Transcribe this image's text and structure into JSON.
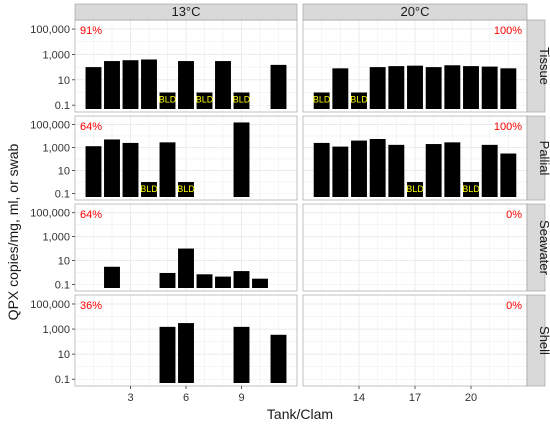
{
  "chart_data": {
    "type": "bar",
    "xlabel": "Tank/Clam",
    "ylabel": "QPX copies/mg, ml, or swab",
    "y_scale": "log10",
    "ylim": [
      0.05,
      300000
    ],
    "y_ticks": [
      0.1,
      10,
      1000,
      100000
    ],
    "y_tick_labels": [
      "0.1",
      "10",
      "1,000",
      "100,000"
    ],
    "x_ticks": {
      "13°C": [
        "3",
        "6",
        "9"
      ],
      "20°C": [
        "14",
        "17",
        "20"
      ]
    },
    "columns": [
      "13°C",
      "20°C"
    ],
    "rows": [
      "Tissue",
      "Pallial",
      "Seawater",
      "Shell"
    ],
    "grid": true,
    "colors": {
      "bar": "#000000",
      "percent": "#ff0000",
      "bld": "#ffff00",
      "strip": "#d9d9d9",
      "grid": "#ebebeb"
    },
    "bld_label": "BLD",
    "bld_display_value": 1,
    "panels": [
      {
        "row": "Tissue",
        "column": "13°C",
        "percent": "91%",
        "percent_position": "top-left",
        "x": [
          1,
          2,
          3,
          4,
          5,
          6,
          7,
          8,
          9,
          11
        ],
        "values": [
          100,
          300,
          350,
          400,
          "BLD",
          300,
          "BLD",
          300,
          "BLD",
          150
        ]
      },
      {
        "row": "Tissue",
        "column": "20°C",
        "percent": "100%",
        "percent_position": "top-right",
        "x": [
          12,
          13,
          14,
          15,
          16,
          17,
          18,
          19,
          20,
          21,
          22
        ],
        "values": [
          "BLD",
          80,
          "BLD",
          100,
          120,
          130,
          100,
          140,
          120,
          110,
          80
        ]
      },
      {
        "row": "Pallial",
        "column": "13°C",
        "percent": "64%",
        "percent_position": "top-left",
        "x": [
          1,
          2,
          3,
          4,
          5,
          6,
          9
        ],
        "values": [
          1300,
          5000,
          2500,
          "BLD",
          2800,
          "BLD",
          150000
        ]
      },
      {
        "row": "Pallial",
        "column": "20°C",
        "percent": "100%",
        "percent_position": "top-right",
        "x": [
          12,
          13,
          14,
          15,
          16,
          17,
          18,
          19,
          20,
          21,
          22
        ],
        "values": [
          2500,
          1200,
          4000,
          5500,
          1700,
          "BLD",
          2000,
          2800,
          "BLD",
          1700,
          300
        ]
      },
      {
        "row": "Seawater",
        "column": "13°C",
        "percent": "64%",
        "percent_position": "top-left",
        "x": [
          2,
          5,
          6,
          7,
          8,
          9,
          10
        ],
        "values": [
          3,
          0.9,
          100,
          0.7,
          0.45,
          1.3,
          0.3
        ]
      },
      {
        "row": "Seawater",
        "column": "20°C",
        "percent": "0%",
        "percent_position": "top-right",
        "x": [],
        "values": []
      },
      {
        "row": "Shell",
        "column": "13°C",
        "percent": "36%",
        "percent_position": "top-left",
        "x": [
          5,
          6,
          9,
          11
        ],
        "values": [
          1500,
          3000,
          1500,
          350
        ]
      },
      {
        "row": "Shell",
        "column": "20°C",
        "percent": "0%",
        "percent_position": "top-right",
        "x": [],
        "values": []
      }
    ]
  }
}
